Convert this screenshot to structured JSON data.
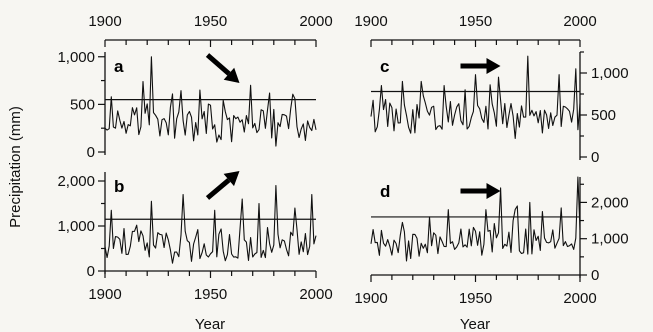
{
  "chart_data": {
    "type": "line",
    "x_range": [
      1900,
      2000
    ],
    "x_ticks": [
      "1900",
      "1950",
      "2000"
    ],
    "top_x_ticks": [
      "1900",
      "1950",
      "2000"
    ],
    "xlabel": "Year",
    "ylabel": "Precipitation (mm)",
    "grid": false,
    "line_color": "#111111",
    "panels": [
      {
        "label": "a",
        "trend_arrow": "down-right",
        "ylim": [
          0,
          1050
        ],
        "y_ticks": [
          0,
          500,
          1000
        ],
        "y_tick_labels": [
          "0",
          "500",
          "1,000"
        ],
        "y_axis_side": "left",
        "threshold": 550,
        "series": {
          "x": [
            1900,
            1905,
            1910,
            1915,
            1920,
            1925,
            1930,
            1935,
            1940,
            1945,
            1950,
            1955,
            1960,
            1965,
            1970,
            1975,
            1980,
            1985,
            1990,
            1995,
            2000
          ],
          "y": [
            380,
            330,
            420,
            300,
            360,
            310,
            280,
            340,
            300,
            260,
            330,
            280,
            300,
            260,
            280,
            300,
            250,
            280,
            270,
            240,
            250
          ],
          "peaks": [
            [
              1903,
              580
            ],
            [
              1918,
              740
            ],
            [
              1922,
              1000
            ],
            [
              1932,
              610
            ],
            [
              1945,
              650
            ],
            [
              1969,
              700
            ],
            [
              1978,
              620
            ],
            [
              1990,
              560
            ]
          ]
        }
      },
      {
        "label": "b",
        "trend_arrow": "up-right",
        "ylim": [
          0,
          2200
        ],
        "y_ticks": [
          0,
          1000,
          2000
        ],
        "y_tick_labels": [
          "0",
          "1,000",
          "2,000"
        ],
        "y_axis_side": "left",
        "threshold": 1150,
        "series": {
          "x": [
            1900,
            1905,
            1910,
            1915,
            1920,
            1925,
            1930,
            1935,
            1940,
            1945,
            1950,
            1955,
            1960,
            1965,
            1970,
            1975,
            1980,
            1985,
            1990,
            1995,
            2000
          ],
          "y": [
            500,
            600,
            550,
            700,
            520,
            580,
            650,
            560,
            600,
            540,
            620,
            560,
            600,
            560,
            640,
            590,
            620,
            580,
            600,
            620,
            560
          ],
          "peaks": [
            [
              1903,
              1350
            ],
            [
              1922,
              1550
            ],
            [
              1937,
              1700
            ],
            [
              1952,
              1350
            ],
            [
              1965,
              1600
            ],
            [
              1973,
              1500
            ],
            [
              1981,
              1900
            ],
            [
              1990,
              1400
            ],
            [
              1998,
              1700
            ]
          ]
        }
      },
      {
        "label": "c",
        "trend_arrow": "right",
        "ylim": [
          0,
          1250
        ],
        "y_ticks": [
          0,
          500,
          1000
        ],
        "y_tick_labels": [
          "0",
          "500",
          "1,000"
        ],
        "y_axis_side": "right",
        "threshold": 780,
        "series": {
          "x": [
            1900,
            1905,
            1910,
            1915,
            1920,
            1925,
            1930,
            1935,
            1940,
            1945,
            1950,
            1955,
            1960,
            1965,
            1970,
            1975,
            1980,
            1985,
            1990,
            1995,
            2000
          ],
          "y": [
            480,
            430,
            520,
            400,
            450,
            500,
            420,
            470,
            430,
            520,
            450,
            480,
            420,
            500,
            430,
            460,
            420,
            480,
            440,
            420,
            430
          ],
          "peaks": [
            [
              1905,
              850
            ],
            [
              1915,
              900
            ],
            [
              1924,
              900
            ],
            [
              1935,
              850
            ],
            [
              1945,
              800
            ],
            [
              1950,
              980
            ],
            [
              1957,
              860
            ],
            [
              1961,
              950
            ],
            [
              1975,
              1200
            ],
            [
              1990,
              980
            ],
            [
              1998,
              1050
            ]
          ]
        }
      },
      {
        "label": "d",
        "trend_arrow": "right",
        "ylim": [
          0,
          2700
        ],
        "y_ticks": [
          0,
          1000,
          2000
        ],
        "y_tick_labels": [
          "0",
          "1,000",
          "2,000"
        ],
        "y_axis_side": "right",
        "threshold": 1600,
        "series": {
          "x": [
            1900,
            1905,
            1910,
            1915,
            1920,
            1925,
            1930,
            1935,
            1940,
            1945,
            1950,
            1955,
            1960,
            1965,
            1970,
            1975,
            1980,
            1985,
            1990,
            1995,
            2000
          ],
          "y": [
            850,
            800,
            900,
            820,
            880,
            900,
            860,
            920,
            950,
            1000,
            880,
            920,
            1000,
            900,
            1050,
            950,
            920,
            1000,
            960,
            900,
            950
          ],
          "peaks": [
            [
              1915,
              1450
            ],
            [
              1928,
              1600
            ],
            [
              1937,
              1800
            ],
            [
              1955,
              1800
            ],
            [
              1962,
              2400
            ],
            [
              1970,
              1900
            ],
            [
              1976,
              2000
            ],
            [
              1982,
              1750
            ],
            [
              1991,
              1850
            ],
            [
              1999,
              2700
            ]
          ]
        }
      }
    ]
  }
}
